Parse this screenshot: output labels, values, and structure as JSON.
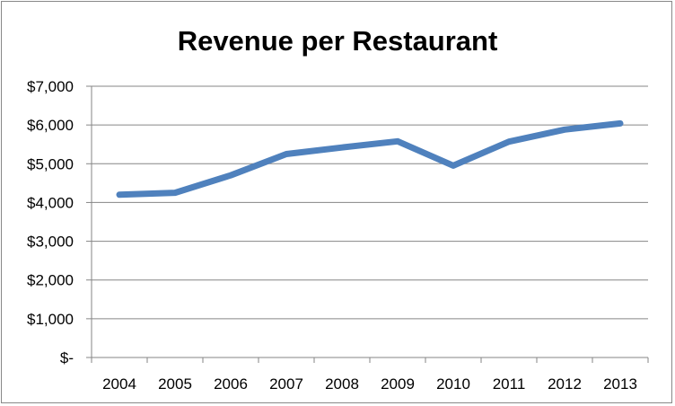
{
  "chart_data": {
    "type": "line",
    "title": "Revenue per Restaurant",
    "xlabel": "",
    "ylabel": "",
    "categories": [
      "2004",
      "2005",
      "2006",
      "2007",
      "2008",
      "2009",
      "2010",
      "2011",
      "2012",
      "2013"
    ],
    "series": [
      {
        "values": [
          4200,
          4250,
          4700,
          5250,
          5420,
          5580,
          4950,
          5570,
          5880,
          6040
        ]
      }
    ],
    "ylim": [
      0,
      7000
    ],
    "yticks": [
      0,
      1000,
      2000,
      3000,
      4000,
      5000,
      6000,
      7000
    ],
    "ytick_labels": [
      "$-",
      "$1,000",
      "$2,000",
      "$3,000",
      "$4,000",
      "$5,000",
      "$6,000",
      "$7,000"
    ],
    "grid": true,
    "legend": "none",
    "colors": {
      "line": "#4f81bd",
      "grid": "#868686",
      "axis": "#868686"
    }
  }
}
